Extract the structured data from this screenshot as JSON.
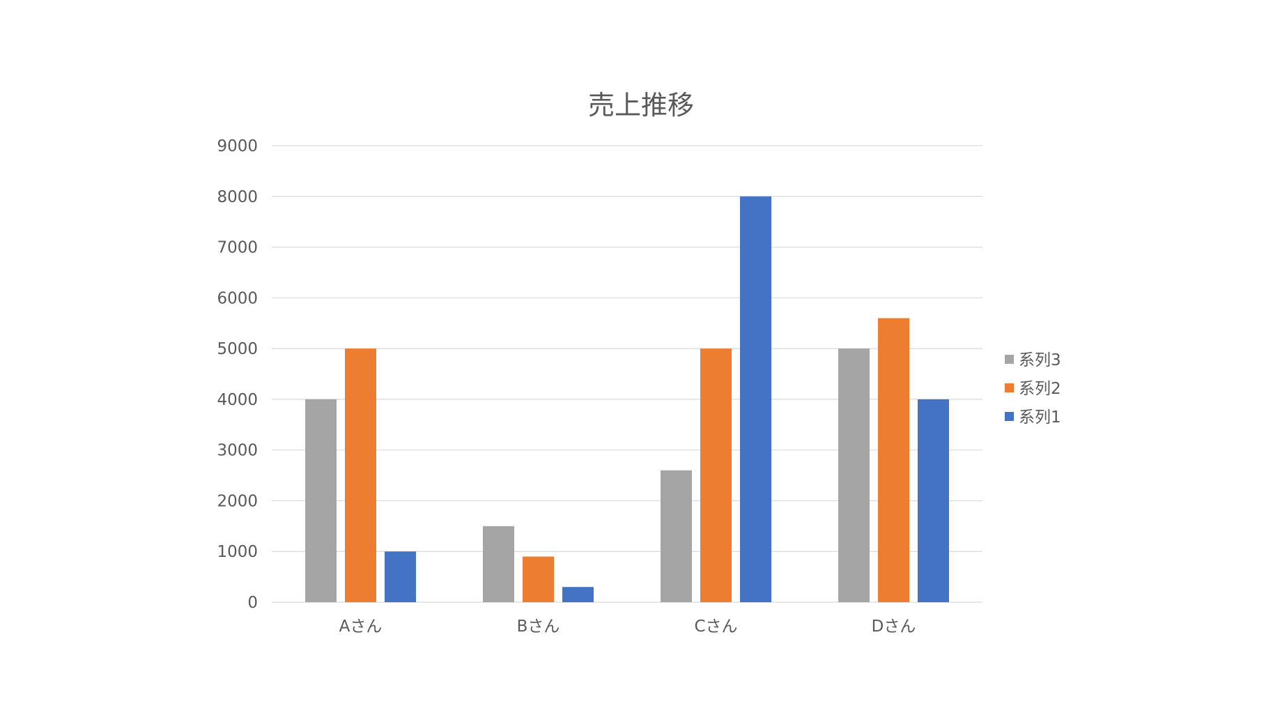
{
  "chart_data": {
    "type": "bar",
    "title": "売上推移",
    "xlabel": "",
    "ylabel": "",
    "categories": [
      "Aさん",
      "Bさん",
      "Cさん",
      "Dさん"
    ],
    "series": [
      {
        "name": "系列3",
        "color": "#a5a5a5",
        "values": [
          4000,
          1500,
          2600,
          5000
        ]
      },
      {
        "name": "系列2",
        "color": "#ed7d31",
        "values": [
          5000,
          900,
          5000,
          5600
        ]
      },
      {
        "name": "系列1",
        "color": "#4472c4",
        "values": [
          1000,
          300,
          8000,
          4000
        ]
      }
    ],
    "ylim": [
      0,
      9000
    ],
    "yticks": [
      0,
      1000,
      2000,
      3000,
      4000,
      5000,
      6000,
      7000,
      8000,
      9000
    ],
    "grid": true,
    "legend_position": "right"
  }
}
